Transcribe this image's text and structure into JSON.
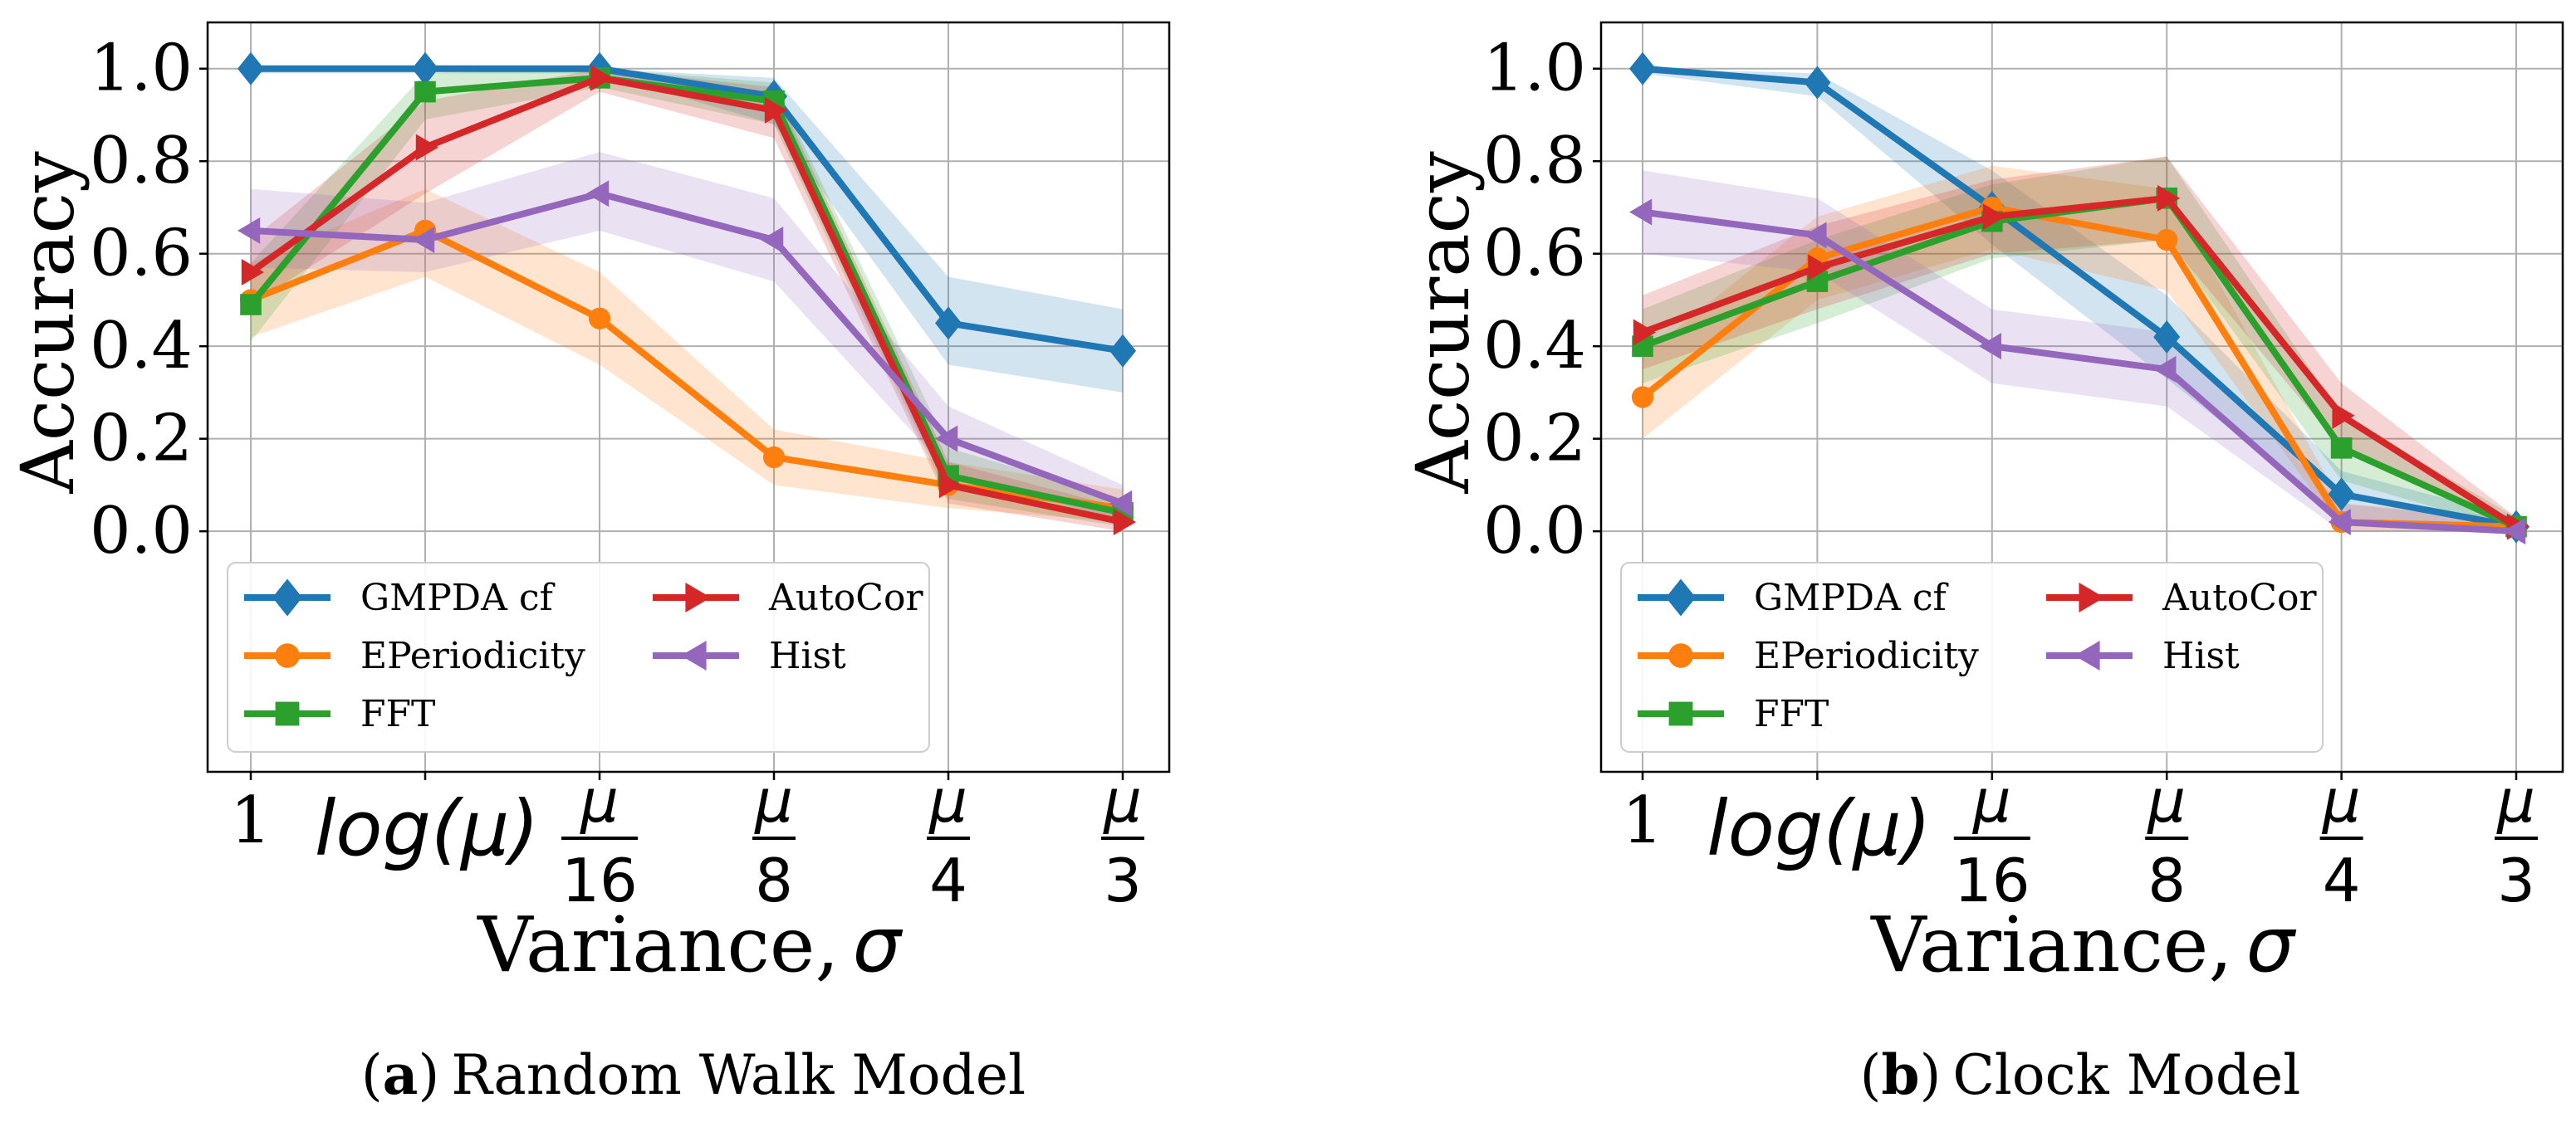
{
  "chart_data": [
    {
      "type": "line",
      "id": "a",
      "caption_letter": "a",
      "caption_paren_open": "(",
      "caption_paren_close": ")",
      "caption_text": "Random Walk Model",
      "ylabel": "Accuracy",
      "xlabel": "Variance,",
      "xlabel_symbol": "σ",
      "ylim": [
        -0.52,
        1.1
      ],
      "yticks": [
        "0.0",
        "0.2",
        "0.4",
        "0.6",
        "0.8",
        "1.0"
      ],
      "ytick_values": [
        0.0,
        0.2,
        0.4,
        0.6,
        0.8,
        1.0
      ],
      "xticks": [
        {
          "kind": "plain",
          "label": "1"
        },
        {
          "kind": "log",
          "label": "log(μ)"
        },
        {
          "kind": "frac",
          "num": "μ",
          "den": "16"
        },
        {
          "kind": "frac",
          "num": "μ",
          "den": "8"
        },
        {
          "kind": "frac",
          "num": "μ",
          "den": "4"
        },
        {
          "kind": "frac",
          "num": "μ",
          "den": "3"
        }
      ],
      "grid": true,
      "legend_position": "lower-left",
      "series": [
        {
          "name": "GMPDA cf",
          "color": "#1f77b4",
          "marker": "diamond",
          "values": [
            1.0,
            1.0,
            1.0,
            0.94,
            0.45,
            0.39
          ],
          "band_low": [
            0.99,
            0.99,
            0.99,
            0.88,
            0.36,
            0.3
          ],
          "band_high": [
            1.0,
            1.0,
            1.0,
            0.98,
            0.55,
            0.48
          ]
        },
        {
          "name": "EPeriodicity",
          "color": "#ff7f0e",
          "marker": "circle",
          "values": [
            0.5,
            0.65,
            0.46,
            0.16,
            0.1,
            0.05
          ],
          "band_low": [
            0.42,
            0.55,
            0.36,
            0.1,
            0.05,
            0.02
          ],
          "band_high": [
            0.58,
            0.74,
            0.56,
            0.22,
            0.15,
            0.09
          ]
        },
        {
          "name": "FFT",
          "color": "#2ca02c",
          "marker": "square",
          "values": [
            0.49,
            0.95,
            0.98,
            0.93,
            0.12,
            0.04
          ],
          "band_low": [
            0.41,
            0.89,
            0.96,
            0.88,
            0.07,
            0.01
          ],
          "band_high": [
            0.58,
            0.99,
            1.0,
            0.97,
            0.18,
            0.07
          ]
        },
        {
          "name": "AutoCor",
          "color": "#d62728",
          "marker": "triangle-right",
          "values": [
            0.56,
            0.83,
            0.98,
            0.91,
            0.1,
            0.02
          ],
          "band_low": [
            0.49,
            0.73,
            0.95,
            0.85,
            0.06,
            0.0
          ],
          "band_high": [
            0.63,
            0.93,
            1.0,
            0.96,
            0.15,
            0.05
          ]
        },
        {
          "name": "Hist",
          "color": "#9467bd",
          "marker": "triangle-left",
          "values": [
            0.65,
            0.63,
            0.73,
            0.63,
            0.2,
            0.06
          ],
          "band_low": [
            0.57,
            0.56,
            0.65,
            0.54,
            0.13,
            0.02
          ],
          "band_high": [
            0.74,
            0.71,
            0.82,
            0.72,
            0.27,
            0.1
          ]
        }
      ]
    },
    {
      "type": "line",
      "id": "b",
      "caption_letter": "b",
      "caption_paren_open": "(",
      "caption_paren_close": ")",
      "caption_text": "Clock Model",
      "ylabel": "Accuracy",
      "xlabel": "Variance,",
      "xlabel_symbol": "σ",
      "ylim": [
        -0.52,
        1.1
      ],
      "yticks": [
        "0.0",
        "0.2",
        "0.4",
        "0.6",
        "0.8",
        "1.0"
      ],
      "ytick_values": [
        0.0,
        0.2,
        0.4,
        0.6,
        0.8,
        1.0
      ],
      "xticks": [
        {
          "kind": "plain",
          "label": "1"
        },
        {
          "kind": "log",
          "label": "log(μ)"
        },
        {
          "kind": "frac",
          "num": "μ",
          "den": "16"
        },
        {
          "kind": "frac",
          "num": "μ",
          "den": "8"
        },
        {
          "kind": "frac",
          "num": "μ",
          "den": "4"
        },
        {
          "kind": "frac",
          "num": "μ",
          "den": "3"
        }
      ],
      "grid": true,
      "legend_position": "lower-left",
      "series": [
        {
          "name": "GMPDA cf",
          "color": "#1f77b4",
          "marker": "diamond",
          "values": [
            1.0,
            0.97,
            0.7,
            0.42,
            0.08,
            0.01
          ],
          "band_low": [
            0.99,
            0.94,
            0.62,
            0.33,
            0.03,
            0.0
          ],
          "band_high": [
            1.0,
            0.99,
            0.78,
            0.51,
            0.13,
            0.03
          ]
        },
        {
          "name": "EPeriodicity",
          "color": "#ff7f0e",
          "marker": "circle",
          "values": [
            0.29,
            0.59,
            0.7,
            0.63,
            0.02,
            0.01
          ],
          "band_low": [
            0.2,
            0.5,
            0.61,
            0.52,
            0.0,
            0.0
          ],
          "band_high": [
            0.38,
            0.68,
            0.79,
            0.74,
            0.06,
            0.03
          ]
        },
        {
          "name": "FFT",
          "color": "#2ca02c",
          "marker": "square",
          "values": [
            0.4,
            0.54,
            0.67,
            0.72,
            0.18,
            0.01
          ],
          "band_low": [
            0.32,
            0.45,
            0.59,
            0.63,
            0.11,
            0.0
          ],
          "band_high": [
            0.48,
            0.63,
            0.75,
            0.81,
            0.25,
            0.03
          ]
        },
        {
          "name": "AutoCor",
          "color": "#d62728",
          "marker": "triangle-right",
          "values": [
            0.43,
            0.57,
            0.68,
            0.72,
            0.25,
            0.01
          ],
          "band_low": [
            0.35,
            0.48,
            0.6,
            0.63,
            0.18,
            0.0
          ],
          "band_high": [
            0.51,
            0.66,
            0.76,
            0.81,
            0.32,
            0.03
          ]
        },
        {
          "name": "Hist",
          "color": "#9467bd",
          "marker": "triangle-left",
          "values": [
            0.69,
            0.64,
            0.4,
            0.35,
            0.02,
            0.0
          ],
          "band_low": [
            0.6,
            0.56,
            0.32,
            0.27,
            0.0,
            0.0
          ],
          "band_high": [
            0.78,
            0.72,
            0.48,
            0.43,
            0.06,
            0.02
          ]
        }
      ]
    }
  ]
}
